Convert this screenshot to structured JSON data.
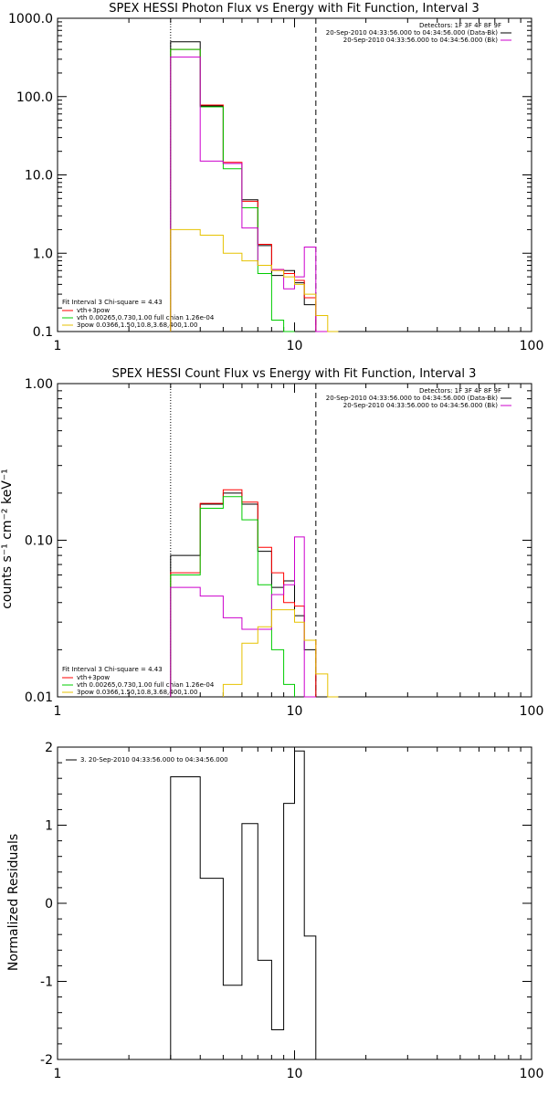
{
  "chart_data": [
    {
      "type": "line",
      "title": "SPEX HESSI Photon Flux vs Energy with Fit Function, Interval 3",
      "xlabel": "",
      "ylabel": "",
      "x_scale": "log",
      "y_scale": "log",
      "xlim": [
        1,
        100
      ],
      "ylim": [
        0.1,
        1000
      ],
      "x_ticks": [
        "1",
        "10",
        "100"
      ],
      "y_ticks": [
        "1000.0",
        "100.0",
        "10.0",
        "1.0",
        "0.1"
      ],
      "fit_interval_kev": [
        3,
        12.3
      ],
      "detector_text": [
        "Detectors: 1F 3F 4F 8F 9F",
        "20-Sep-2010 04:33:56.000 to 04:34:56.000 (Data-Bk)",
        "20-Sep-2010 04:33:56.000 to 04:34:56.000 (Bk)"
      ],
      "fit_text": [
        "Fit Interval 3   Chi-square = 4.43",
        "vth+3pow",
        "vth 0.00265,0.730,1.00   full chian 1.26e-04",
        "3pow 0.0366,1.50,10.8,3.68,400,1.00"
      ],
      "bin_edges": [
        3,
        4,
        5,
        6,
        7,
        8,
        9,
        10,
        11,
        12.3,
        13.8,
        15.3
      ],
      "series": [
        {
          "name": "20-Sep-2010 04:33:56.000 to 04:34:56.000 (Data-Bk)",
          "color": "#000000",
          "values": [
            500,
            76,
            14,
            4.8,
            1.25,
            0.52,
            0.6,
            0.42,
            0.22,
            null,
            null
          ]
        },
        {
          "name": "vth+3pow",
          "color": "#ff0000",
          "values": [
            400,
            78,
            14.5,
            4.6,
            1.3,
            0.62,
            0.55,
            0.45,
            0.27,
            null,
            null
          ]
        },
        {
          "name": "vth",
          "color": "#00cc00",
          "values": [
            400,
            74,
            12,
            3.8,
            0.55,
            0.14,
            0.1,
            null,
            null,
            null,
            null
          ]
        },
        {
          "name": "20-Sep-2010 04:33:56.000 to 04:34:56.000 (Bk)",
          "color": "#cc00cc",
          "values": [
            320,
            15,
            14,
            2.1,
            0.7,
            0.62,
            0.35,
            0.5,
            1.2,
            0.06,
            null
          ]
        },
        {
          "name": "3pow",
          "color": "#e6c200",
          "values": [
            2,
            1.7,
            1.0,
            0.8,
            0.7,
            0.6,
            0.5,
            0.4,
            0.3,
            0.16,
            0.1
          ]
        }
      ]
    },
    {
      "type": "line",
      "title": "SPEX HESSI Count Flux vs Energy with Fit Function, Interval 3",
      "xlabel": "",
      "ylabel": "counts s⁻¹ cm⁻² keV⁻¹",
      "x_scale": "log",
      "y_scale": "log",
      "xlim": [
        1,
        100
      ],
      "ylim": [
        0.01,
        1
      ],
      "x_ticks": [
        "1",
        "10",
        "100"
      ],
      "y_ticks": [
        "1.00",
        "0.10",
        "0.01"
      ],
      "fit_interval_kev": [
        3,
        12.3
      ],
      "detector_text": [
        "Detectors: 1F 3F 4F 8F 9F",
        "20-Sep-2010 04:33:56.000 to 04:34:56.000 (Data-Bk)",
        "20-Sep-2010 04:33:56.000 to 04:34:56.000 (Bk)"
      ],
      "fit_text": [
        "Fit Interval 3   Chi-square = 4.43",
        "vth+3pow",
        "vth 0.00265,0.730,1.00   full chian 1.26e-04",
        "3pow 0.0366,1.50,10.8,3.68,400,1.00"
      ],
      "bin_edges": [
        3,
        4,
        5,
        6,
        7,
        8,
        9,
        10,
        11,
        12.3,
        13.8,
        15.3
      ],
      "series": [
        {
          "name": "20-Sep-2010 04:33:56.000 to 04:34:56.000 (Data-Bk)",
          "color": "#000000",
          "values": [
            0.08,
            0.17,
            0.2,
            0.17,
            0.085,
            0.05,
            0.055,
            0.033,
            0.02,
            null,
            null
          ]
        },
        {
          "name": "vth+3pow",
          "color": "#ff0000",
          "values": [
            0.062,
            0.172,
            0.21,
            0.175,
            0.09,
            0.062,
            0.04,
            0.038,
            0.023,
            null,
            null
          ]
        },
        {
          "name": "vth",
          "color": "#00cc00",
          "values": [
            0.06,
            0.16,
            0.19,
            0.135,
            0.052,
            0.02,
            0.012,
            null,
            null,
            null,
            null
          ]
        },
        {
          "name": "20-Sep-2010 04:33:56.000 to 04:34:56.000 (Bk)",
          "color": "#cc00cc",
          "values": [
            0.05,
            0.044,
            0.032,
            0.027,
            0.027,
            0.045,
            0.052,
            0.105,
            0.0085,
            null,
            null
          ]
        },
        {
          "name": "3pow",
          "color": "#e6c200",
          "values": [
            null,
            null,
            0.012,
            0.022,
            0.028,
            0.036,
            0.036,
            0.03,
            0.023,
            0.014,
            0.01
          ]
        }
      ]
    },
    {
      "type": "line",
      "title": "",
      "xlabel": "",
      "ylabel": "Normalized Residuals",
      "x_scale": "log",
      "y_scale": "linear",
      "xlim": [
        1,
        100
      ],
      "ylim": [
        -2,
        2
      ],
      "x_ticks": [
        "1",
        "10",
        "100"
      ],
      "y_ticks": [
        "2",
        "1",
        "0",
        "-1",
        "-2"
      ],
      "legend_text": "3. 20-Sep-2010 04:33:56.000 to 04:34:56.000",
      "bin_edges": [
        3,
        4,
        5,
        6,
        7,
        8,
        9,
        10,
        11,
        12.3
      ],
      "series": [
        {
          "name": "3. 20-Sep-2010 04:33:56.000 to 04:34:56.000",
          "color": "#000000",
          "values": [
            1.62,
            0.32,
            -1.05,
            1.02,
            -0.73,
            -1.62,
            1.28,
            1.95,
            -0.42
          ]
        }
      ]
    }
  ]
}
